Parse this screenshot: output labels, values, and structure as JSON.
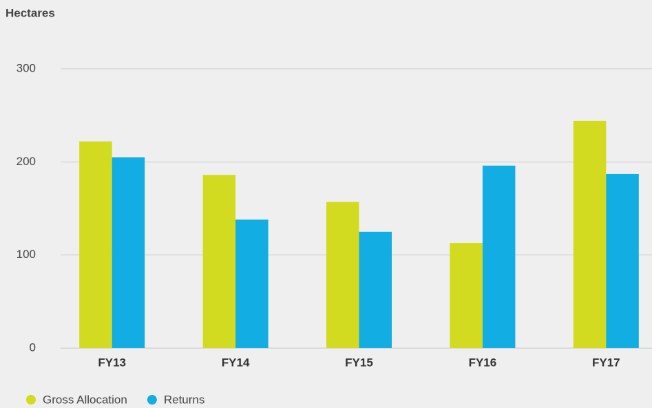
{
  "chart_data": {
    "type": "bar",
    "y_label": "Hectares",
    "categories": [
      "FY13",
      "FY14",
      "FY15",
      "FY16",
      "FY17"
    ],
    "series": [
      {
        "name": "Gross Allocation",
        "color": "#d2db1f",
        "values": [
          222,
          186,
          157,
          113,
          244
        ]
      },
      {
        "name": "Returns",
        "color": "#12ade3",
        "values": [
          205,
          138,
          125,
          196,
          187
        ]
      }
    ],
    "ylim": [
      0,
      300
    ],
    "yticks": [
      0,
      100,
      200,
      300
    ],
    "grid": true,
    "legend": "bottom-left"
  }
}
